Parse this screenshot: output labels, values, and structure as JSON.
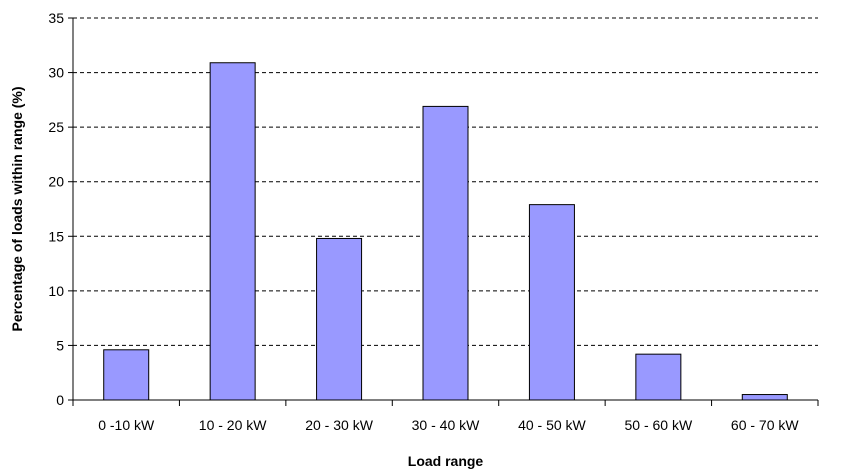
{
  "chart_data": {
    "type": "bar",
    "title": "",
    "xlabel": "Load range",
    "ylabel": "Percentage of loads within range (%)",
    "categories": [
      "0 -10 kW",
      "10 - 20 kW",
      "20 - 30 kW",
      "30 - 40 kW",
      "40 - 50 kW",
      "50 - 60 kW",
      "60 - 70 kW"
    ],
    "values": [
      4.6,
      30.9,
      14.8,
      26.9,
      17.9,
      4.2,
      0.5
    ],
    "ylim": [
      0,
      35
    ],
    "yticks": [
      0,
      5,
      10,
      15,
      20,
      25,
      30,
      35
    ],
    "grid": true,
    "legend": "none",
    "colors": {
      "bar_fill": "#9999ff",
      "bar_stroke": "#000000",
      "gridline": "#000000"
    }
  }
}
